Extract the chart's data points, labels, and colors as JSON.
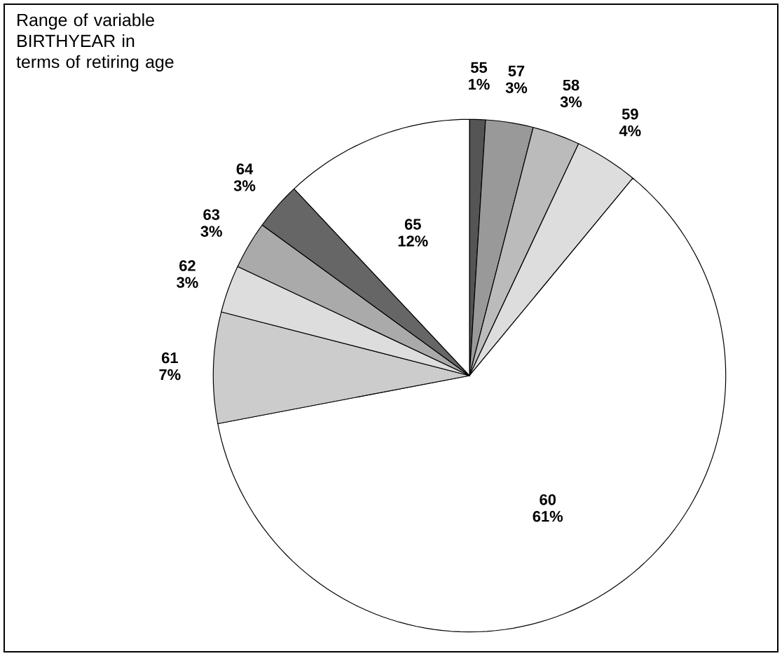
{
  "chart_data": {
    "type": "pie",
    "title": "Range of variable BIRTHYEAR in terms of retiring age",
    "categories": [
      "55",
      "57",
      "58",
      "59",
      "60",
      "61",
      "62",
      "63",
      "64",
      "65"
    ],
    "values": [
      1,
      3,
      3,
      4,
      61,
      7,
      3,
      3,
      3,
      12
    ],
    "value_labels": [
      "1%",
      "3%",
      "3%",
      "4%",
      "61%",
      "7%",
      "3%",
      "3%",
      "3%",
      "12%"
    ],
    "colors": [
      "#555555",
      "#999999",
      "#bbbbbb",
      "#dddddd",
      "#ffffff",
      "#cccccc",
      "#dddddd",
      "#aaaaaa",
      "#666666",
      "#ffffff"
    ]
  }
}
